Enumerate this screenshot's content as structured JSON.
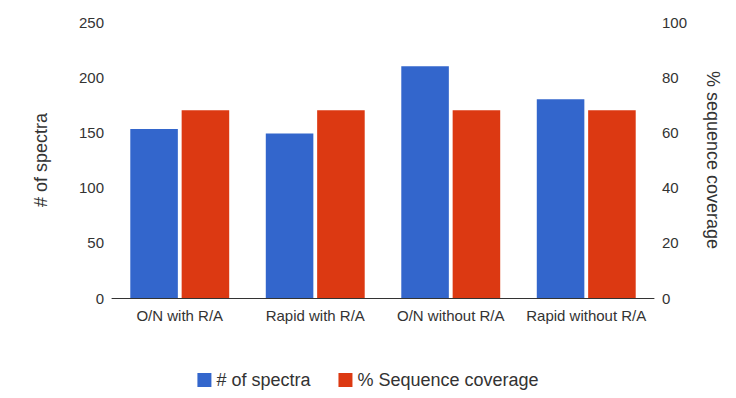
{
  "chart_data": {
    "type": "bar",
    "categories": [
      "O/N with R/A",
      "Rapid with R/A",
      "O/N without R/A",
      "Rapid without R/A"
    ],
    "series": [
      {
        "name": "# of spectra",
        "color": "#3366cc",
        "values": [
          153,
          149,
          210,
          180
        ]
      },
      {
        "name": "% Sequence coverage",
        "color": "#dc3912",
        "values": [
          68,
          68,
          68,
          68
        ],
        "axis": "y2"
      }
    ],
    "ylabel": "# of spectra",
    "y2label": "% sequence coverage",
    "ylim": [
      0,
      250
    ],
    "yticks": [
      0,
      50,
      100,
      150,
      200,
      250
    ],
    "y2lim": [
      0,
      100
    ],
    "y2ticks": [
      0,
      20,
      40,
      60,
      80,
      100
    ],
    "grid": false,
    "legend": "bottom"
  }
}
